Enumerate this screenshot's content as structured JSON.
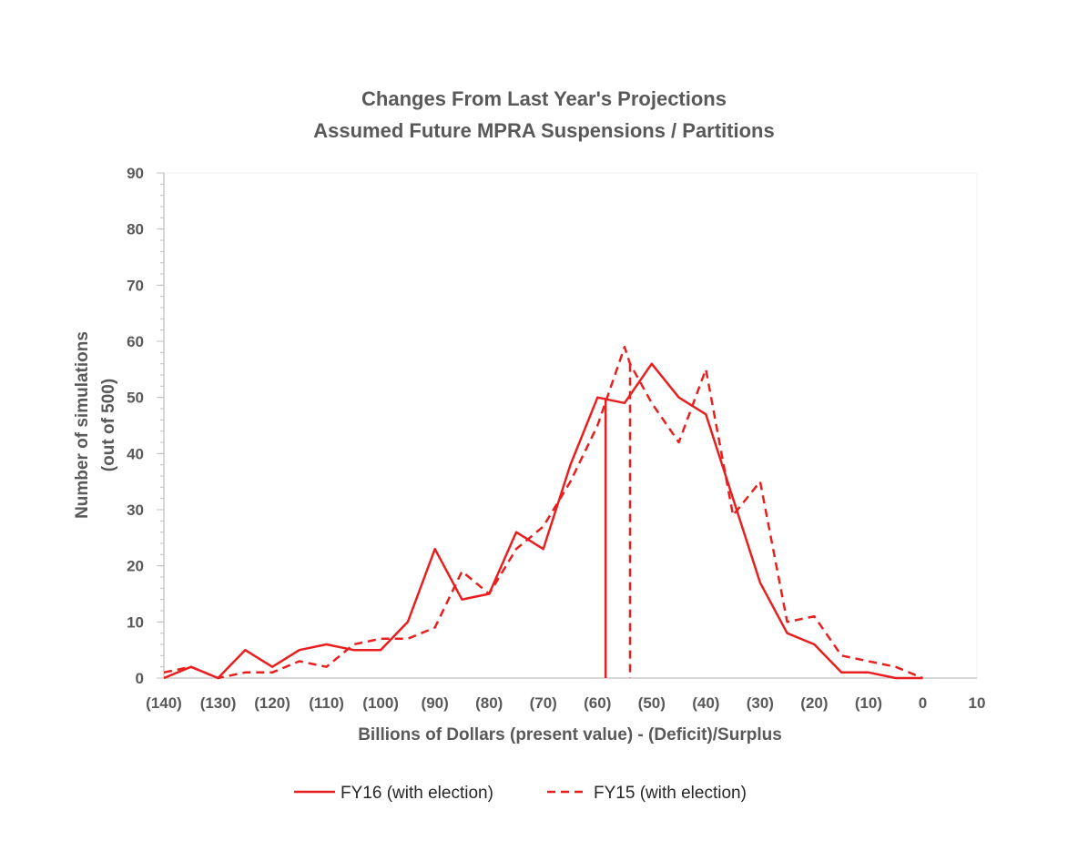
{
  "chart_data": {
    "type": "line",
    "title": "Changes From Last Year's Projections",
    "subtitle": "Assumed Future MPRA Suspensions / Partitions",
    "xlabel": "Billions of Dollars (present value) - (Deficit)/Surplus",
    "ylabel_line1": "Number of simulations",
    "ylabel_line2": "(out of 500)",
    "xlim": [
      -140,
      10
    ],
    "ylim": [
      0,
      90
    ],
    "x_ticks": [
      -140,
      -130,
      -120,
      -110,
      -100,
      -90,
      -80,
      -70,
      -60,
      -50,
      -40,
      -30,
      -20,
      -10,
      0,
      10
    ],
    "x_tick_labels": [
      "(140)",
      "(130)",
      "(120)",
      "(110)",
      "(100)",
      "(90)",
      "(80)",
      "(70)",
      "(60)",
      "(50)",
      "(40)",
      "(30)",
      "(20)",
      "(10)",
      "0",
      "10"
    ],
    "y_ticks": [
      0,
      10,
      20,
      30,
      40,
      50,
      60,
      70,
      80,
      90
    ],
    "y_tick_labels": [
      "0",
      "10",
      "20",
      "30",
      "40",
      "50",
      "60",
      "70",
      "80",
      "90"
    ],
    "grid": false,
    "legend_position": "bottom",
    "series": [
      {
        "name": "FY16 (with election)",
        "color": "#e81f1f",
        "style": "solid",
        "x": [
          -140,
          -135,
          -130,
          -125,
          -120,
          -115,
          -110,
          -105,
          -100,
          -95,
          -90,
          -85,
          -80,
          -75,
          -70,
          -65,
          -60,
          -55,
          -50,
          -45,
          -40,
          -35,
          -30,
          -25,
          -20,
          -15,
          -10,
          -5,
          0
        ],
        "y": [
          0,
          2,
          0,
          5,
          2,
          5,
          6,
          5,
          5,
          10,
          23,
          14,
          15,
          26,
          23,
          38,
          50,
          49,
          56,
          50,
          47,
          32,
          17,
          8,
          6,
          1,
          1,
          0,
          0
        ],
        "median": -58.5
      },
      {
        "name": "FY15 (with election)",
        "color": "#e81f1f",
        "style": "dashed",
        "x": [
          -140,
          -135,
          -130,
          -125,
          -120,
          -115,
          -110,
          -105,
          -100,
          -95,
          -90,
          -85,
          -80,
          -75,
          -70,
          -65,
          -60,
          -55,
          -54,
          -50,
          -45,
          -40,
          -35,
          -30,
          -25,
          -20,
          -15,
          -10,
          -5,
          0
        ],
        "y": [
          1,
          2,
          0,
          1,
          1,
          3,
          2,
          6,
          7,
          7,
          9,
          19,
          15,
          23,
          27,
          35,
          45,
          59,
          56,
          49,
          42,
          55,
          29,
          35,
          10,
          11,
          4,
          3,
          2,
          0
        ],
        "median": -54
      }
    ]
  }
}
